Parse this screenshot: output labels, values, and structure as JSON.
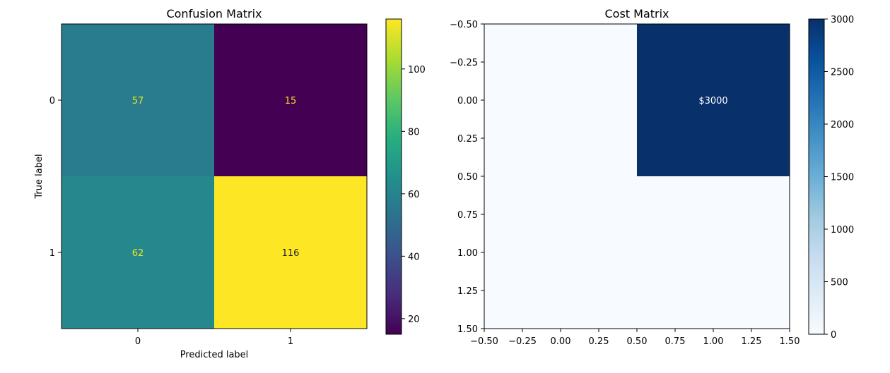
{
  "chart_data": [
    {
      "type": "heatmap",
      "title": "Confusion Matrix",
      "xlabel": "Predicted label",
      "ylabel": "True label",
      "x_tick_labels": [
        "0",
        "1"
      ],
      "y_tick_labels": [
        "0",
        "1"
      ],
      "values": [
        [
          57,
          15
        ],
        [
          62,
          116
        ]
      ],
      "cell_labels": [
        [
          "57",
          "15"
        ],
        [
          "62",
          "116"
        ]
      ],
      "colormap": "viridis",
      "annotation_colors": {
        "on_light": "#1f1f1f",
        "on_dark": "#f2e51d"
      },
      "colorbar": {
        "range": [
          15,
          116
        ],
        "ticks": [
          20,
          40,
          60,
          80,
          100
        ],
        "tick_labels": [
          "20",
          "40",
          "60",
          "80",
          "100"
        ]
      },
      "grid": false
    },
    {
      "type": "heatmap",
      "title": "Cost Matrix",
      "xlabel": "",
      "ylabel": "",
      "xlim": [
        -0.5,
        1.5
      ],
      "ylim": [
        1.5,
        -0.5
      ],
      "x_ticks": [
        -0.5,
        -0.25,
        0.0,
        0.25,
        0.5,
        0.75,
        1.0,
        1.25,
        1.5
      ],
      "x_tick_labels": [
        "−0.50",
        "−0.25",
        "0.00",
        "0.25",
        "0.50",
        "0.75",
        "1.00",
        "1.25",
        "1.50"
      ],
      "y_ticks": [
        -0.5,
        -0.25,
        0.0,
        0.25,
        0.5,
        0.75,
        1.0,
        1.25,
        1.5
      ],
      "y_tick_labels": [
        "−0.50",
        "−0.25",
        "0.00",
        "0.25",
        "0.50",
        "0.75",
        "1.00",
        "1.25",
        "1.50"
      ],
      "values": [
        [
          0,
          3000
        ],
        [
          0,
          0
        ]
      ],
      "cell_labels": [
        [
          "",
          "$3000"
        ],
        [
          "",
          ""
        ]
      ],
      "colormap": "Blues",
      "annotation_color": "#ffffff",
      "colorbar": {
        "range": [
          0,
          3000
        ],
        "ticks": [
          0,
          500,
          1000,
          1500,
          2000,
          2500,
          3000
        ],
        "tick_labels": [
          "0",
          "500",
          "1000",
          "1500",
          "2000",
          "2500",
          "3000"
        ]
      },
      "grid": false
    }
  ]
}
